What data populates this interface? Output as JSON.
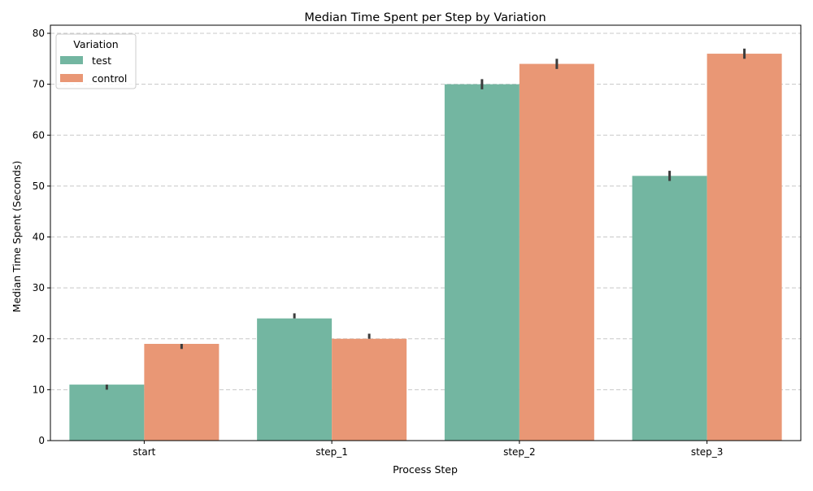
{
  "chart_data": {
    "type": "bar",
    "title": "Median Time Spent per Step by Variation",
    "xlabel": "Process Step",
    "ylabel": "Median Time Spent (Seconds)",
    "categories": [
      "start",
      "step_1",
      "step_2",
      "step_3"
    ],
    "ylim": [
      0,
      80
    ],
    "yticks": [
      0,
      10,
      20,
      30,
      40,
      50,
      60,
      70,
      80
    ],
    "grid": "horizontal dashed",
    "legend": {
      "title": "Variation",
      "placement": "top-left"
    },
    "series": [
      {
        "name": "test",
        "color": "#73b6a1",
        "values": [
          11,
          24,
          70,
          52
        ],
        "error_low": [
          10,
          24,
          69,
          51
        ],
        "error_high": [
          11,
          25,
          71,
          53
        ]
      },
      {
        "name": "control",
        "color": "#e99775",
        "values": [
          19,
          20,
          74,
          76
        ],
        "error_low": [
          18,
          20,
          73,
          75
        ],
        "error_high": [
          19,
          21,
          75,
          77
        ]
      }
    ]
  }
}
